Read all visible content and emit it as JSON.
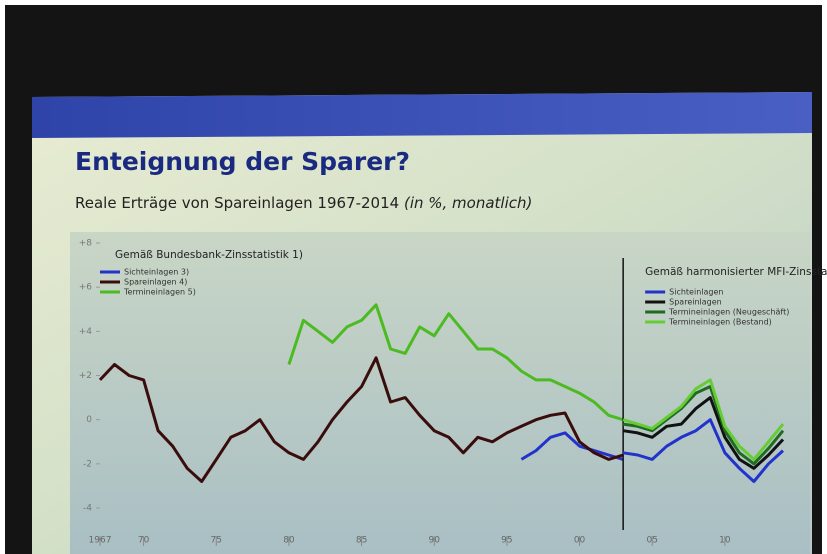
{
  "slide": {
    "title": "Enteignung der Sparer?",
    "subtitle": "Reale Erträge von Spareinlagen 1967-2014",
    "subtitle_note": "(in %, monatlich)"
  },
  "chart_data": [
    {
      "type": "line",
      "subtitle": "Gemäß Bundesbank-Zinsstatistik 1)",
      "x": [
        1967,
        1968,
        1969,
        1970,
        1971,
        1972,
        1973,
        1974,
        1975,
        1976,
        1977,
        1978,
        1979,
        1980,
        1981,
        1982,
        1983,
        1984,
        1985,
        1986,
        1987,
        1988,
        1989,
        1990,
        1991,
        1992,
        1993,
        1994,
        1995,
        1996,
        1997,
        1998,
        1999,
        2000,
        2001,
        2002,
        2003
      ],
      "xlim": [
        1967,
        2003
      ],
      "xticks": [
        1967,
        {
          "value": 1970,
          "label": "70"
        },
        {
          "value": 1975,
          "label": "75"
        },
        {
          "value": 1980,
          "label": "80"
        },
        {
          "value": 1985,
          "label": "85"
        },
        {
          "value": 1990,
          "label": "90"
        },
        {
          "value": 1995,
          "label": "95"
        },
        {
          "value": 2000,
          "label": "00"
        }
      ],
      "ylim": [
        -4,
        8
      ],
      "yticks": [
        -4,
        -2,
        0,
        {
          "value": 2,
          "label": "+2"
        },
        {
          "value": 4,
          "label": "+4"
        },
        {
          "value": 6,
          "label": "+6"
        },
        {
          "value": 8,
          "label": "+8"
        }
      ],
      "series": [
        {
          "name": "Sichteinlagen 3)",
          "color": "#2233cc",
          "values": [
            null,
            null,
            null,
            null,
            null,
            null,
            null,
            null,
            null,
            null,
            null,
            null,
            null,
            null,
            null,
            null,
            null,
            null,
            null,
            null,
            null,
            null,
            null,
            null,
            null,
            null,
            null,
            null,
            null,
            -1.8,
            -1.4,
            -0.8,
            -0.6,
            -1.2,
            -1.4,
            -1.6,
            -1.8
          ]
        },
        {
          "name": "Spareinlagen 4)",
          "color": "#3a0d0d",
          "values": [
            1.8,
            2.5,
            2.0,
            1.8,
            -0.5,
            -1.2,
            -2.2,
            -2.8,
            -1.8,
            -0.8,
            -0.5,
            0,
            -1.0,
            -1.5,
            -1.8,
            -1.0,
            0.0,
            0.8,
            1.5,
            2.8,
            0.8,
            1.0,
            0.2,
            -0.5,
            -0.8,
            -1.5,
            -0.8,
            -1.0,
            -0.6,
            -0.3,
            0.0,
            0.2,
            0.3,
            -1.0,
            -1.5,
            -1.8,
            -1.6
          ]
        },
        {
          "name": "Termineinlagen 5)",
          "color": "#4cbb22",
          "values": [
            null,
            null,
            null,
            null,
            null,
            null,
            null,
            null,
            null,
            null,
            null,
            null,
            null,
            2.5,
            4.5,
            4.0,
            3.5,
            4.2,
            4.5,
            5.2,
            3.2,
            3.0,
            4.2,
            3.8,
            4.8,
            4.0,
            3.2,
            3.2,
            2.8,
            2.2,
            1.8,
            1.8,
            1.5,
            1.2,
            0.8,
            0.2,
            0
          ]
        }
      ]
    },
    {
      "type": "line",
      "subtitle": "Gemäß harmonisierter MFI-Zinsstatistik 2)",
      "x": [
        2003,
        2004,
        2005,
        2006,
        2007,
        2008,
        2009,
        2010,
        2011,
        2012,
        2013,
        2014
      ],
      "xlim": [
        2003,
        2014
      ],
      "xticks": [
        {
          "value": 2005,
          "label": "05"
        },
        {
          "value": 2010,
          "label": "10"
        }
      ],
      "ylim": [
        -4,
        8
      ],
      "series": [
        {
          "name": "Sichteinlagen",
          "color": "#2233cc",
          "values": [
            -1.5,
            -1.6,
            -1.8,
            -1.2,
            -0.8,
            -0.5,
            0.0,
            -1.5,
            -2.2,
            -2.8,
            -2.0,
            -1.4
          ]
        },
        {
          "name": "Spareinlagen",
          "color": "#111111",
          "values": [
            -0.5,
            -0.6,
            -0.8,
            -0.3,
            -0.2,
            0.5,
            1.0,
            -0.8,
            -1.8,
            -2.2,
            -1.6,
            -0.9
          ]
        },
        {
          "name": "Termineinlagen (Neugeschäft)",
          "color": "#1f6b1f",
          "values": [
            -0.2,
            -0.3,
            -0.5,
            0.0,
            0.5,
            1.2,
            1.5,
            -0.5,
            -1.5,
            -2.0,
            -1.3,
            -0.5
          ]
        },
        {
          "name": "Termineinlagen (Bestand)",
          "color": "#66cc33",
          "values": [
            0.0,
            -0.2,
            -0.4,
            0.1,
            0.6,
            1.4,
            1.8,
            -0.3,
            -1.2,
            -1.8,
            -1.0,
            -0.2
          ]
        }
      ]
    }
  ]
}
